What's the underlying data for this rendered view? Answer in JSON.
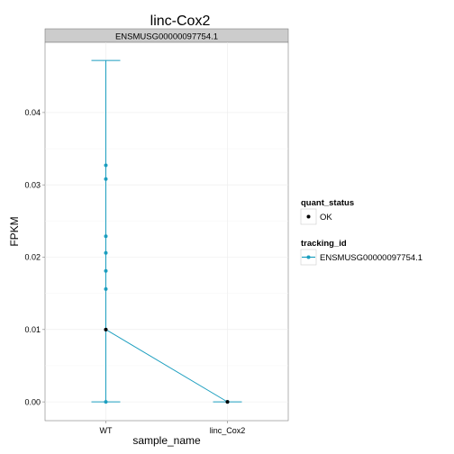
{
  "chart_data": {
    "type": "line",
    "title": "linc-Cox2",
    "facet_label": "ENSMUSG00000097754.1",
    "xlabel": "sample_name",
    "ylabel": "FPKM",
    "categories": [
      "WT",
      "linc_Cox2"
    ],
    "yticks": [
      "0.00",
      "0.01",
      "0.02",
      "0.03",
      "0.04"
    ],
    "ylim": [
      -0.0026,
      0.0497
    ],
    "grid": true,
    "legend_position": "right",
    "series": [
      {
        "name": "ENSMUSG00000097754.1",
        "color": "#1b9ebf",
        "means": [
          0.01,
          0.0
        ],
        "error_low": [
          0.0,
          0.0
        ],
        "error_high": [
          0.0472,
          0.0
        ],
        "replicates": [
          {
            "category": "WT",
            "values": [
              0.0327,
              0.0308,
              0.0229,
              0.0206,
              0.0181,
              0.0156,
              0.01,
              0.0
            ]
          },
          {
            "category": "linc_Cox2",
            "values": [
              0.0
            ]
          }
        ]
      }
    ],
    "points": [
      {
        "category": "WT",
        "value": 0.01,
        "quant_status": "OK"
      },
      {
        "category": "linc_Cox2",
        "value": 0.0,
        "quant_status": "OK"
      }
    ],
    "legend": {
      "quant_status_title": "quant_status",
      "quant_status_items": [
        "OK"
      ],
      "tracking_id_title": "tracking_id",
      "tracking_id_items": [
        "ENSMUSG00000097754.1"
      ]
    }
  }
}
